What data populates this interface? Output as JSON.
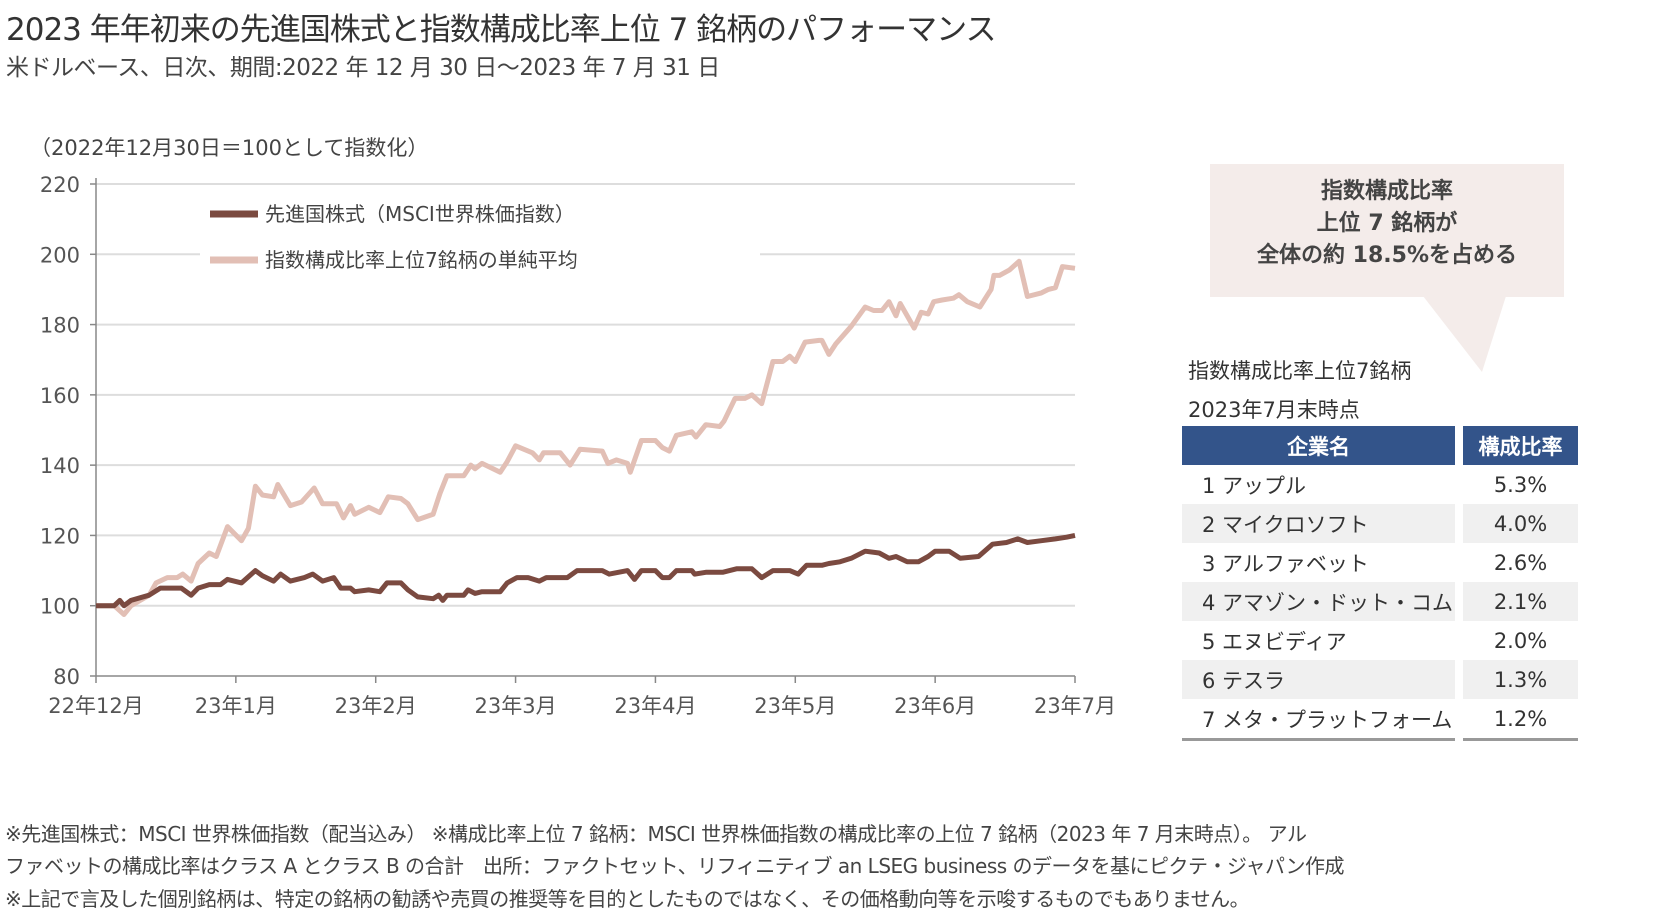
{
  "header": {
    "title": "2023 年年初来の先進国株式と指数構成比率上位 7 銘柄のパフォーマンス",
    "subtitle": "米ドルベース、日次、期間:2022 年 12 月 30 日～2023 年 7 月 31 日"
  },
  "chart_data": {
    "type": "line",
    "title": "",
    "ylabel": "（2022年12月30日＝100として指数化）",
    "xlabel": "",
    "ylim": [
      80,
      220
    ],
    "yticks": [
      80,
      100,
      120,
      140,
      160,
      180,
      200,
      220
    ],
    "xlim": [
      0,
      7
    ],
    "x_unit": "months since 2022-12-30",
    "xtick_labels": [
      "22年12月",
      "23年1月",
      "23年2月",
      "23年3月",
      "23年4月",
      "23年5月",
      "23年6月",
      "23年7月"
    ],
    "grid": true,
    "legend_position": "top-left",
    "series": [
      {
        "name": "先進国株式（MSCI世界株価指数）",
        "color": "#7b4a40",
        "points": [
          [
            0,
            100
          ],
          [
            0.13,
            100
          ],
          [
            0.17,
            101.5
          ],
          [
            0.2,
            100
          ],
          [
            0.25,
            101.5
          ],
          [
            0.38,
            103
          ],
          [
            0.46,
            105
          ],
          [
            0.61,
            105
          ],
          [
            0.68,
            103
          ],
          [
            0.73,
            105
          ],
          [
            0.81,
            106
          ],
          [
            0.89,
            106
          ],
          [
            0.94,
            107.5
          ],
          [
            1.04,
            106.5
          ],
          [
            1.14,
            110
          ],
          [
            1.19,
            108.5
          ],
          [
            1.27,
            107
          ],
          [
            1.32,
            109
          ],
          [
            1.39,
            107
          ],
          [
            1.49,
            108
          ],
          [
            1.55,
            109
          ],
          [
            1.62,
            107
          ],
          [
            1.7,
            108
          ],
          [
            1.75,
            105
          ],
          [
            1.82,
            105
          ],
          [
            1.85,
            104
          ],
          [
            1.95,
            104.5
          ],
          [
            2.03,
            104
          ],
          [
            2.08,
            106.5
          ],
          [
            2.18,
            106.5
          ],
          [
            2.23,
            104.5
          ],
          [
            2.3,
            102.5
          ],
          [
            2.41,
            102
          ],
          [
            2.45,
            103
          ],
          [
            2.48,
            101.5
          ],
          [
            2.51,
            103
          ],
          [
            2.63,
            103
          ],
          [
            2.66,
            104.5
          ],
          [
            2.71,
            103.5
          ],
          [
            2.76,
            104
          ],
          [
            2.89,
            104
          ],
          [
            2.94,
            106.5
          ],
          [
            3.01,
            108
          ],
          [
            3.09,
            108
          ],
          [
            3.17,
            107
          ],
          [
            3.22,
            108
          ],
          [
            3.37,
            108
          ],
          [
            3.44,
            110
          ],
          [
            3.62,
            110
          ],
          [
            3.67,
            109
          ],
          [
            3.8,
            110
          ],
          [
            3.85,
            107.5
          ],
          [
            3.9,
            110
          ],
          [
            4.0,
            110
          ],
          [
            4.05,
            108
          ],
          [
            4.1,
            108
          ],
          [
            4.15,
            110
          ],
          [
            4.26,
            110
          ],
          [
            4.28,
            109
          ],
          [
            4.36,
            109.5
          ],
          [
            4.48,
            109.5
          ],
          [
            4.58,
            110.5
          ],
          [
            4.69,
            110.5
          ],
          [
            4.76,
            108
          ],
          [
            4.84,
            110
          ],
          [
            4.96,
            110
          ],
          [
            5.02,
            109
          ],
          [
            5.08,
            111.5
          ],
          [
            5.19,
            111.5
          ],
          [
            5.24,
            112
          ],
          [
            5.32,
            112.5
          ],
          [
            5.4,
            113.5
          ],
          [
            5.5,
            115.5
          ],
          [
            5.6,
            115
          ],
          [
            5.67,
            113.5
          ],
          [
            5.72,
            114
          ],
          [
            5.8,
            112.5
          ],
          [
            5.88,
            112.5
          ],
          [
            5.95,
            114
          ],
          [
            6.0,
            115.5
          ],
          [
            6.1,
            115.5
          ],
          [
            6.18,
            113.5
          ],
          [
            6.31,
            114
          ],
          [
            6.41,
            117.5
          ],
          [
            6.51,
            118
          ],
          [
            6.59,
            119
          ],
          [
            6.66,
            118
          ],
          [
            6.76,
            118.5
          ],
          [
            6.86,
            119
          ],
          [
            6.94,
            119.5
          ],
          [
            7.0,
            120
          ]
        ]
      },
      {
        "name": "指数構成比率上位7銘柄の単純平均",
        "color": "#e2bfb5",
        "points": [
          [
            0,
            100
          ],
          [
            0.13,
            100
          ],
          [
            0.2,
            97.5
          ],
          [
            0.25,
            100
          ],
          [
            0.38,
            103
          ],
          [
            0.43,
            106.5
          ],
          [
            0.51,
            108
          ],
          [
            0.58,
            108
          ],
          [
            0.62,
            109
          ],
          [
            0.68,
            107
          ],
          [
            0.73,
            112
          ],
          [
            0.81,
            115
          ],
          [
            0.86,
            114
          ],
          [
            0.94,
            122.5
          ],
          [
            1.04,
            118.5
          ],
          [
            1.09,
            122
          ],
          [
            1.14,
            134
          ],
          [
            1.19,
            131.5
          ],
          [
            1.27,
            131
          ],
          [
            1.3,
            134.5
          ],
          [
            1.39,
            128.5
          ],
          [
            1.47,
            129.5
          ],
          [
            1.56,
            133.5
          ],
          [
            1.62,
            129
          ],
          [
            1.72,
            129
          ],
          [
            1.77,
            125
          ],
          [
            1.82,
            128.5
          ],
          [
            1.85,
            126
          ],
          [
            1.95,
            128
          ],
          [
            2.03,
            126.5
          ],
          [
            2.09,
            131
          ],
          [
            2.18,
            130.5
          ],
          [
            2.23,
            129
          ],
          [
            2.3,
            124.5
          ],
          [
            2.41,
            126
          ],
          [
            2.46,
            132
          ],
          [
            2.51,
            137
          ],
          [
            2.63,
            137
          ],
          [
            2.68,
            140
          ],
          [
            2.71,
            139
          ],
          [
            2.76,
            140.5
          ],
          [
            2.89,
            138
          ],
          [
            2.94,
            141
          ],
          [
            3.0,
            145.5
          ],
          [
            3.12,
            143.5
          ],
          [
            3.17,
            141.5
          ],
          [
            3.2,
            143.5
          ],
          [
            3.32,
            143.5
          ],
          [
            3.39,
            140
          ],
          [
            3.46,
            144.5
          ],
          [
            3.62,
            144
          ],
          [
            3.66,
            140.5
          ],
          [
            3.72,
            141.5
          ],
          [
            3.8,
            140.5
          ],
          [
            3.82,
            138
          ],
          [
            3.9,
            147
          ],
          [
            4.0,
            147
          ],
          [
            4.05,
            145
          ],
          [
            4.1,
            144
          ],
          [
            4.15,
            148.5
          ],
          [
            4.26,
            149.5
          ],
          [
            4.29,
            148
          ],
          [
            4.36,
            151.5
          ],
          [
            4.46,
            151
          ],
          [
            4.49,
            152.5
          ],
          [
            4.57,
            159
          ],
          [
            4.64,
            159
          ],
          [
            4.69,
            160
          ],
          [
            4.76,
            157.5
          ],
          [
            4.84,
            169.5
          ],
          [
            4.91,
            169.5
          ],
          [
            4.96,
            171
          ],
          [
            5.0,
            169.5
          ],
          [
            5.07,
            175
          ],
          [
            5.17,
            175.5
          ],
          [
            5.19,
            175.5
          ],
          [
            5.24,
            171.5
          ],
          [
            5.29,
            174.5
          ],
          [
            5.4,
            179.5
          ],
          [
            5.5,
            185
          ],
          [
            5.56,
            184
          ],
          [
            5.62,
            184
          ],
          [
            5.67,
            186.5
          ],
          [
            5.72,
            182.5
          ],
          [
            5.75,
            186
          ],
          [
            5.85,
            179
          ],
          [
            5.9,
            183.5
          ],
          [
            5.95,
            183
          ],
          [
            5.99,
            186.5
          ],
          [
            6.05,
            187
          ],
          [
            6.13,
            187.5
          ],
          [
            6.17,
            188.5
          ],
          [
            6.23,
            186.5
          ],
          [
            6.32,
            185
          ],
          [
            6.4,
            190
          ],
          [
            6.42,
            194
          ],
          [
            6.46,
            194
          ],
          [
            6.53,
            195.5
          ],
          [
            6.6,
            198
          ],
          [
            6.66,
            188
          ],
          [
            6.76,
            189
          ],
          [
            6.81,
            190
          ],
          [
            6.86,
            190.5
          ],
          [
            6.91,
            196.5
          ],
          [
            7.0,
            196
          ]
        ]
      }
    ]
  },
  "callout": {
    "lines": [
      "指数構成比率",
      "上位 7 銘柄が",
      "全体の約 18.5%を占める"
    ]
  },
  "table": {
    "title": "指数構成比率上位7銘柄",
    "as_of": "2023年7月末時点",
    "headers": [
      "企業名",
      "構成比率"
    ],
    "rows": [
      {
        "name": "1  アップル",
        "pct": "5.3%"
      },
      {
        "name": "2  マイクロソフト",
        "pct": "4.0%"
      },
      {
        "name": "3  アルファベット",
        "pct": "2.6%"
      },
      {
        "name": "4  アマゾン・ドット・コム",
        "pct": "2.1%"
      },
      {
        "name": "5  エヌビディア",
        "pct": "2.0%"
      },
      {
        "name": "6  テスラ",
        "pct": "1.3%"
      },
      {
        "name": "7  メタ・プラットフォーム",
        "pct": "1.2%"
      }
    ]
  },
  "footnotes": [
    "※先進国株式：MSCI 世界株価指数（配当込み） ※構成比率上位 7 銘柄：MSCI 世界株価指数の構成比率の上位 7 銘柄（2023 年 7 月末時点）。 アル",
    "ファベットの構成比率はクラス A とクラス B の合計　出所：ファクトセット、リフィニティブ  an LSEG business のデータを基にピクテ・ジャパン作成",
    "※上記で言及した個別銘柄は、特定の銘柄の勧誘や売買の推奨等を目的としたものではなく、その価格動向等を示唆するものでもありません。"
  ]
}
